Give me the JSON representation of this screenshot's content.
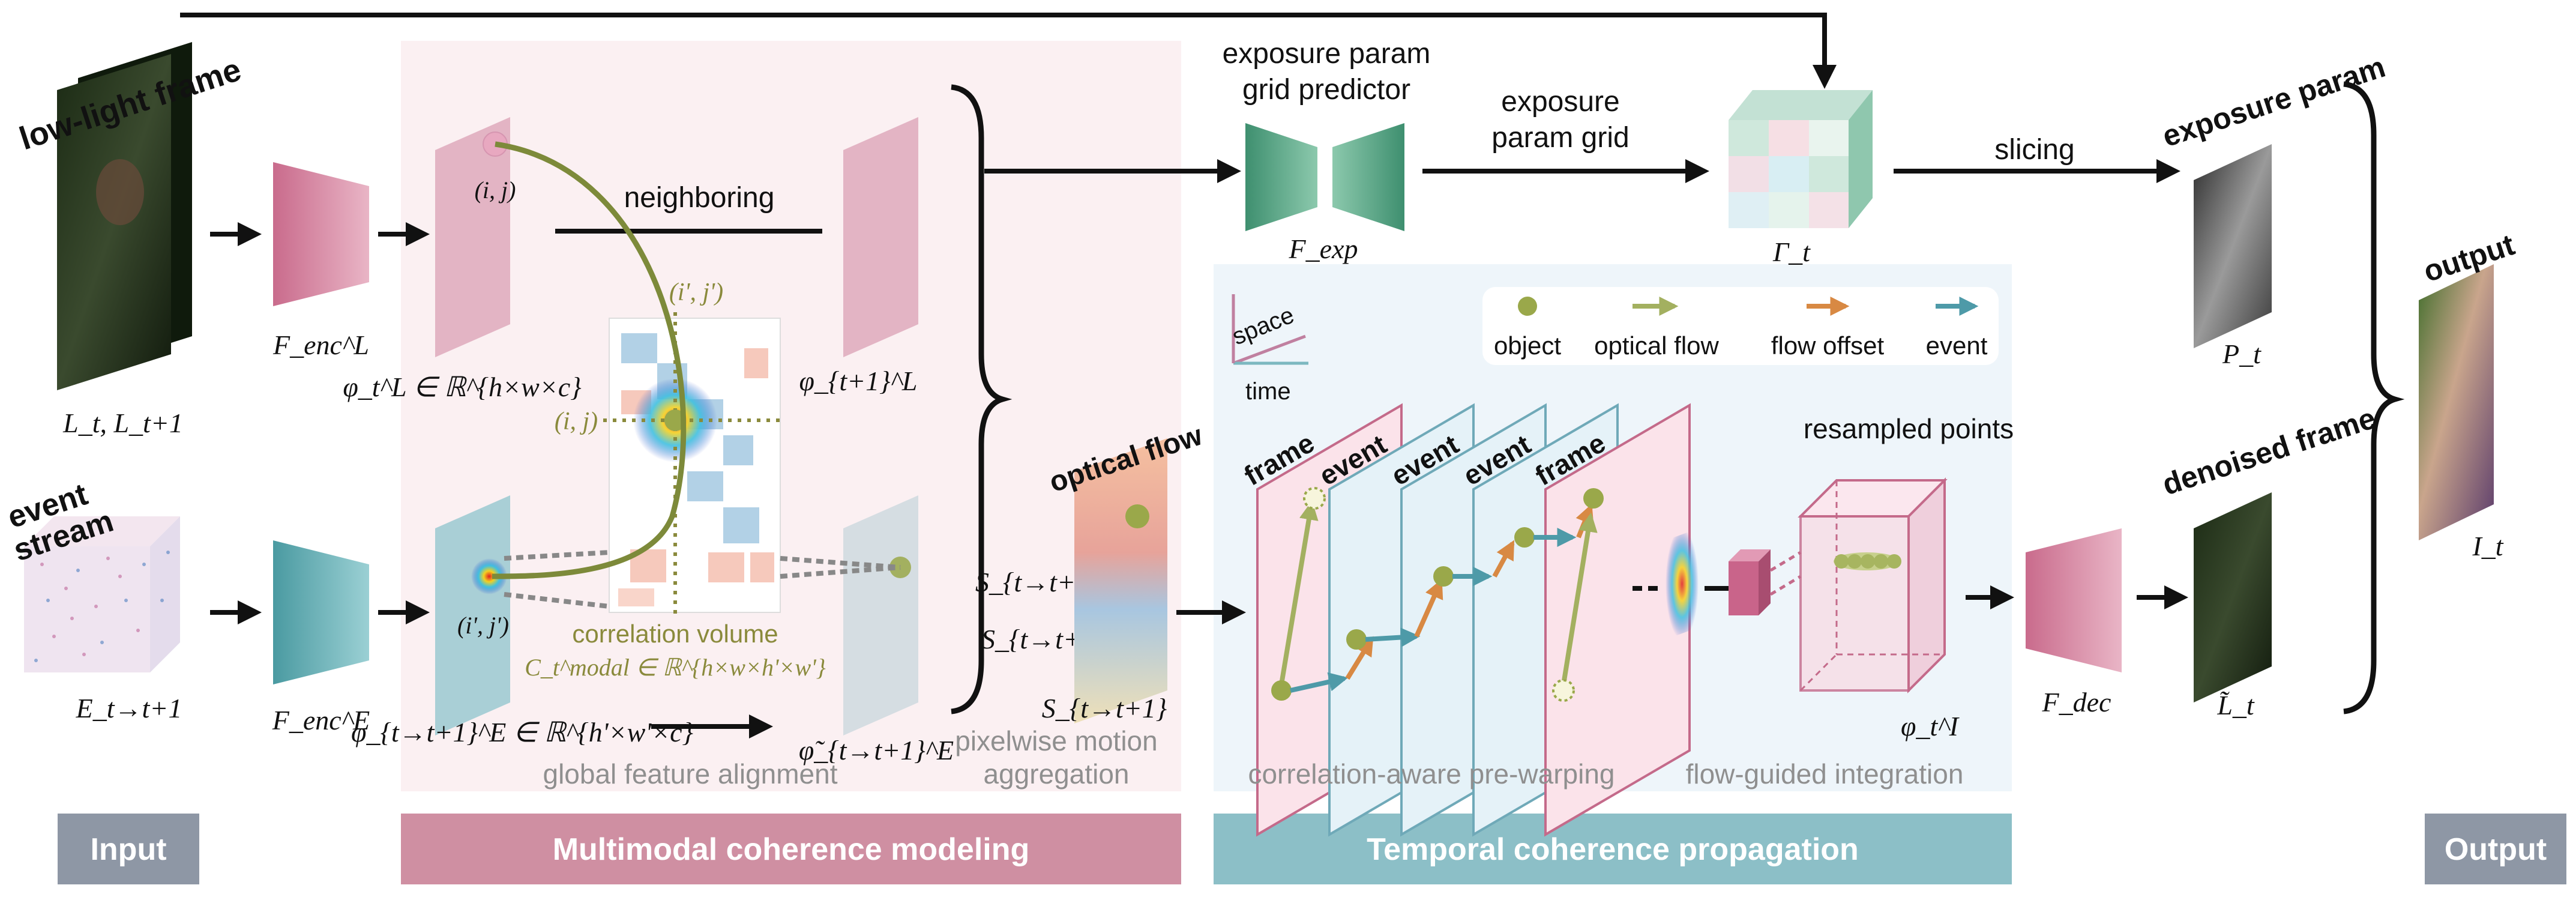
{
  "sections": {
    "input": "Input",
    "multimodal": "Multimodal coherence modeling",
    "temporal": "Temporal coherence propagation",
    "output": "Output"
  },
  "labels": {
    "low_light_frame": "low-light frame",
    "event_stream_1": "event",
    "event_stream_2": "stream",
    "L_frames": "L_t, L_t+1",
    "E_stream": "E_t→t+1",
    "F_enc_L": "F_enc^L",
    "F_enc_E": "F_enc^E",
    "phi_L_t": "φ_t^L ∈ ℝ^{h×w×c}",
    "phi_L_t1": "φ_{t+1}^L",
    "phi_E": "φ_{t→t+1}^E ∈ ℝ^{h'×w'×c}",
    "phi_E_tilde": "φ̃_{t→t+1}^E",
    "neighboring": "neighboring",
    "ij": "(i, j)",
    "ij_prime": "(i', j')",
    "correlation_volume": "correlation volume",
    "C_modal": "C_t^modal ∈ ℝ^{h×w×h'×w'}",
    "global_feature_alignment": "global feature alignment",
    "S_E": "S_{t→t+1}^E,",
    "S_L": "S_{t→t+1}^L",
    "optical_flow": "optical flow",
    "S_total": "S_{t→t+1}",
    "pixelwise_1": "pixelwise motion",
    "pixelwise_2": "aggregation",
    "exposure_predictor_1": "exposure param",
    "exposure_predictor_2": "grid predictor",
    "F_exp": "F_exp",
    "exposure_grid_1": "exposure",
    "exposure_grid_2": "param grid",
    "Gamma": "Γ_t",
    "slicing": "slicing",
    "legend_object": "object",
    "legend_optical_flow": "optical flow",
    "legend_flow_offset": "flow offset",
    "legend_event": "event",
    "space": "space",
    "time": "time",
    "frame": "frame",
    "event": "event",
    "resampled_points": "resampled points",
    "phi_I": "φ_t^I",
    "pre_warping": "correlation-aware pre-warping",
    "flow_guided": "flow-guided integration",
    "F_dec": "F_dec",
    "exposure_param": "exposure param",
    "P_t": "P_t",
    "denoised_frame": "denoised frame",
    "L_tilde": "L̃_t",
    "output": "output",
    "I_t": "I_t"
  },
  "colors": {
    "section_gray": "#8e97a5",
    "section_pink": "#cf8fa2",
    "section_teal": "#8cbfc7",
    "panel_pink": "#fbf1f2",
    "panel_blue": "#eef5fa",
    "encoder_pink": "#d47a99",
    "encoder_teal": "#58a8ae",
    "feature_pink": "#e3b4c4",
    "feature_gray": "#d5dde2",
    "exp_green": "#5aa889",
    "olive": "#9aa84a",
    "orange": "#d88943",
    "teal_arrow": "#4e9aa8"
  }
}
